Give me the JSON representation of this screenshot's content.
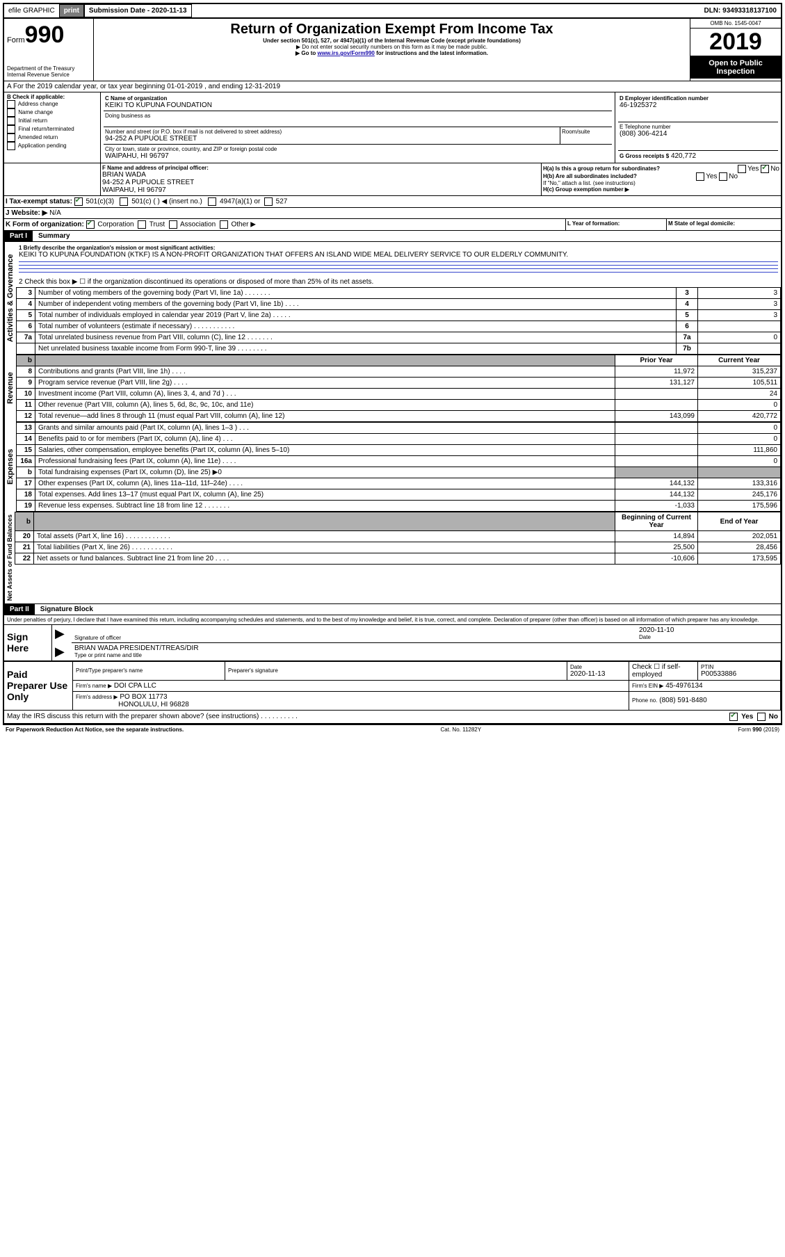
{
  "topbar": {
    "efile": "efile GRAPHIC",
    "print": "print",
    "subdate_label": "Submission Date - 2020-11-13",
    "dln": "DLN: 93493318137100"
  },
  "header": {
    "form_prefix": "Form",
    "form_num": "990",
    "dept1": "Department of the Treasury",
    "dept2": "Internal Revenue Service",
    "title": "Return of Organization Exempt From Income Tax",
    "sub1": "Under section 501(c), 527, or 4947(a)(1) of the Internal Revenue Code (except private foundations)",
    "sub2": "▶ Do not enter social security numbers on this form as it may be made public.",
    "sub3": "▶ Go to www.irs.gov/Form990 for instructions and the latest information.",
    "omb": "OMB No. 1545-0047",
    "year": "2019",
    "open": "Open to Public Inspection"
  },
  "a_line": "A For the 2019 calendar year, or tax year beginning 01-01-2019   , and ending 12-31-2019",
  "b": {
    "label": "B Check if applicable:",
    "opts": [
      "Address change",
      "Name change",
      "Initial return",
      "Final return/terminated",
      "Amended return",
      "Application pending"
    ]
  },
  "c": {
    "name_label": "C Name of organization",
    "name": "KEIKI TO KUPUNA FOUNDATION",
    "dba_label": "Doing business as",
    "street_label": "Number and street (or P.O. box if mail is not delivered to street address)",
    "room_label": "Room/suite",
    "street": "94-252 A PUPUOLE STREET",
    "city_label": "City or town, state or province, country, and ZIP or foreign postal code",
    "city": "WAIPAHU, HI  96797"
  },
  "d": {
    "label": "D Employer identification number",
    "val": "46-1925372"
  },
  "e": {
    "label": "E Telephone number",
    "val": "(808) 306-4214"
  },
  "g": {
    "label": "G Gross receipts $",
    "val": "420,772"
  },
  "f": {
    "label": "F  Name and address of principal officer:",
    "name": "BRIAN WADA",
    "addr1": "94-252 A PUPUOLE STREET",
    "addr2": "WAIPAHU, HI  96797"
  },
  "h": {
    "a": "H(a)  Is this a group return for subordinates?",
    "b": "H(b)  Are all subordinates included?",
    "b_note": "If \"No,\" attach a list. (see instructions)",
    "c": "H(c)  Group exemption number ▶",
    "yes": "Yes",
    "no": "No"
  },
  "i": {
    "label": "I  Tax-exempt status:",
    "o1": "501(c)(3)",
    "o2": "501(c) (  ) ◀ (insert no.)",
    "o3": "4947(a)(1) or",
    "o4": "527"
  },
  "j": {
    "label": "J  Website: ▶",
    "val": "N/A"
  },
  "k": {
    "label": "K Form of organization:",
    "o1": "Corporation",
    "o2": "Trust",
    "o3": "Association",
    "o4": "Other ▶"
  },
  "l": {
    "label": "L Year of formation:"
  },
  "m": {
    "label": "M State of legal domicile:"
  },
  "part1": {
    "tab": "Part I",
    "title": "Summary",
    "q1_label": "1  Briefly describe the organization's mission or most significant activities:",
    "q1_text": "KEIKI TO KUPUNA FOUNDATION (KTKF) IS A NON-PROFIT ORGANIZATION THAT OFFERS AN ISLAND WIDE MEAL DELIVERY SERVICE TO OUR ELDERLY COMMUNITY.",
    "q2": "2  Check this box ▶ ☐  if the organization discontinued its operations or disposed of more than 25% of its net assets.",
    "rows_ag": [
      {
        "n": "3",
        "t": "Number of voting members of the governing body (Part VI, line 1a)  .   .   .   .   .   .   .",
        "box": "3",
        "v": "3"
      },
      {
        "n": "4",
        "t": "Number of independent voting members of the governing body (Part VI, line 1b)  .   .   .   .",
        "box": "4",
        "v": "3"
      },
      {
        "n": "5",
        "t": "Total number of individuals employed in calendar year 2019 (Part V, line 2a)  .   .   .   .   .",
        "box": "5",
        "v": "3"
      },
      {
        "n": "6",
        "t": "Total number of volunteers (estimate if necessary)   .    .    .    .    .    .    .    .    .    .    .",
        "box": "6",
        "v": ""
      },
      {
        "n": "7a",
        "t": "Total unrelated business revenue from Part VIII, column (C), line 12   .   .   .   .   .   .   .",
        "box": "7a",
        "v": "0"
      },
      {
        "n": "",
        "t": "Net unrelated business taxable income from Form 990-T, line 39   .   .   .   .   .   .   .   .",
        "box": "7b",
        "v": ""
      }
    ],
    "col_prior": "Prior Year",
    "col_current": "Current Year",
    "rev": [
      {
        "n": "8",
        "t": "Contributions and grants (Part VIII, line 1h)  .    .    .    .",
        "p": "11,972",
        "c": "315,237"
      },
      {
        "n": "9",
        "t": "Program service revenue (Part VIII, line 2g)   .    .    .    .",
        "p": "131,127",
        "c": "105,511"
      },
      {
        "n": "10",
        "t": "Investment income (Part VIII, column (A), lines 3, 4, and 7d )   .    .    .",
        "p": "",
        "c": "24"
      },
      {
        "n": "11",
        "t": "Other revenue (Part VIII, column (A), lines 5, 6d, 8c, 9c, 10c, and 11e)",
        "p": "",
        "c": "0"
      },
      {
        "n": "12",
        "t": "Total revenue—add lines 8 through 11 (must equal Part VIII, column (A), line 12)",
        "p": "143,099",
        "c": "420,772"
      }
    ],
    "exp": [
      {
        "n": "13",
        "t": "Grants and similar amounts paid (Part IX, column (A), lines 1–3 )  .    .    .",
        "p": "",
        "c": "0"
      },
      {
        "n": "14",
        "t": "Benefits paid to or for members (Part IX, column (A), line 4)   .    .    .",
        "p": "",
        "c": "0"
      },
      {
        "n": "15",
        "t": "Salaries, other compensation, employee benefits (Part IX, column (A), lines 5–10)",
        "p": "",
        "c": "111,860"
      },
      {
        "n": "16a",
        "t": "Professional fundraising fees (Part IX, column (A), line 11e)   .    .    .    .",
        "p": "",
        "c": "0"
      },
      {
        "n": "b",
        "t": "Total fundraising expenses (Part IX, column (D), line 25) ▶0",
        "p": "grey",
        "c": "grey"
      },
      {
        "n": "17",
        "t": "Other expenses (Part IX, column (A), lines 11a–11d, 11f–24e)   .    .    .    .",
        "p": "144,132",
        "c": "133,316"
      },
      {
        "n": "18",
        "t": "Total expenses. Add lines 13–17 (must equal Part IX, column (A), line 25)",
        "p": "144,132",
        "c": "245,176"
      },
      {
        "n": "19",
        "t": "Revenue less expenses. Subtract line 18 from line 12  .   .   .   .   .   .   .",
        "p": "-1,033",
        "c": "175,596"
      }
    ],
    "col_begin": "Beginning of Current Year",
    "col_end": "End of Year",
    "net": [
      {
        "n": "20",
        "t": "Total assets (Part X, line 16)  .    .    .    .    .    .    .    .    .    .    .    .",
        "p": "14,894",
        "c": "202,051"
      },
      {
        "n": "21",
        "t": "Total liabilities (Part X, line 26)  .    .    .    .    .    .    .    .    .    .    .",
        "p": "25,500",
        "c": "28,456"
      },
      {
        "n": "22",
        "t": "Net assets or fund balances. Subtract line 21 from line 20  .    .    .    .",
        "p": "-10,606",
        "c": "173,595"
      }
    ],
    "vlabels": {
      "ag": "Activities & Governance",
      "rev": "Revenue",
      "exp": "Expenses",
      "net": "Net Assets or Fund Balances"
    }
  },
  "part2": {
    "tab": "Part II",
    "title": "Signature Block",
    "decl": "Under penalties of perjury, I declare that I have examined this return, including accompanying schedules and statements, and to the best of my knowledge and belief, it is true, correct, and complete. Declaration of preparer (other than officer) is based on all information of which preparer has any knowledge.",
    "sign_here": "Sign Here",
    "sig_officer": "Signature of officer",
    "sig_date": "2020-11-10",
    "sig_date_label": "Date",
    "sig_name": "BRIAN WADA  PRESIDENT/TREAS/DIR",
    "sig_name_label": "Type or print name and title",
    "paid": "Paid Preparer Use Only",
    "pp_name_label": "Print/Type preparer's name",
    "pp_sig_label": "Preparer's signature",
    "pp_date_label": "Date",
    "pp_date": "2020-11-13",
    "pp_check": "Check ☐ if self-employed",
    "ptin_label": "PTIN",
    "ptin": "P00533886",
    "firm_name_label": "Firm's name     ▶",
    "firm_name": "DOI CPA LLC",
    "firm_ein_label": "Firm's EIN ▶",
    "firm_ein": "45-4976134",
    "firm_addr_label": "Firm's address ▶",
    "firm_addr1": "PO BOX 11773",
    "firm_addr2": "HONOLULU, HI  96828",
    "phone_label": "Phone no.",
    "phone": "(808) 591-8480",
    "discuss": "May the IRS discuss this return with the preparer shown above? (see instructions)   .    .    .    .    .    .    .    .    .    .",
    "yes": "Yes",
    "no": "No"
  },
  "footer": {
    "left": "For Paperwork Reduction Act Notice, see the separate instructions.",
    "center": "Cat. No. 11282Y",
    "right": "Form 990 (2019)"
  }
}
